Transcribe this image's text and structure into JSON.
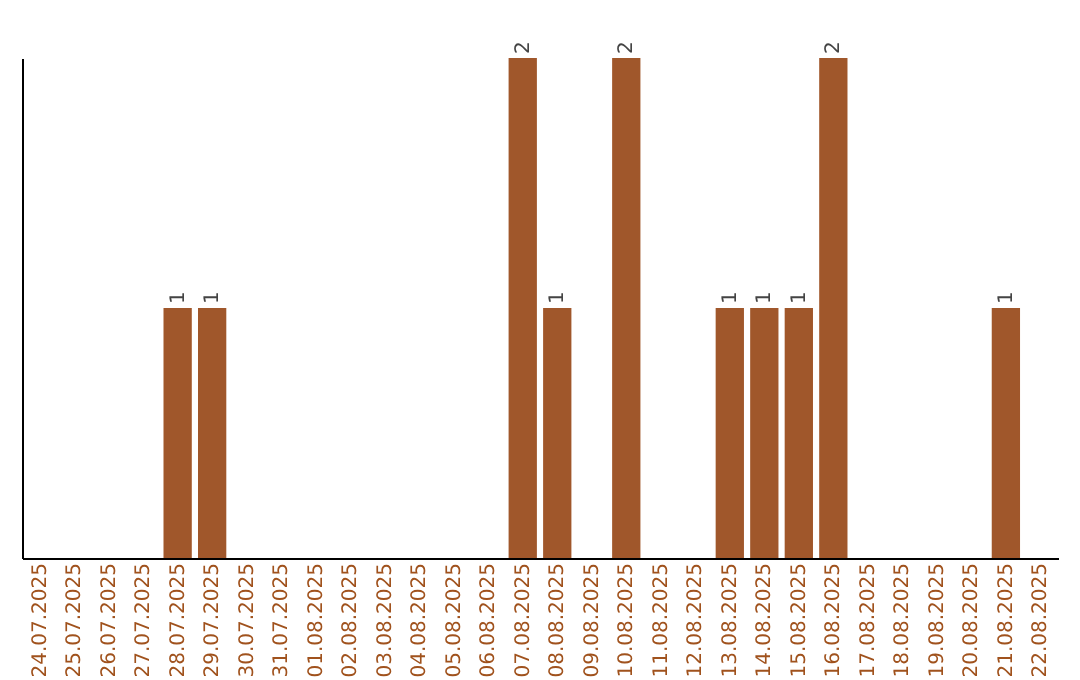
{
  "chart_data": {
    "type": "bar",
    "categories": [
      "24.07.2025",
      "25.07.2025",
      "26.07.2025",
      "27.07.2025",
      "28.07.2025",
      "29.07.2025",
      "30.07.2025",
      "31.07.2025",
      "01.08.2025",
      "02.08.2025",
      "03.08.2025",
      "04.08.2025",
      "05.08.2025",
      "06.08.2025",
      "07.08.2025",
      "08.08.2025",
      "09.08.2025",
      "10.08.2025",
      "11.08.2025",
      "12.08.2025",
      "13.08.2025",
      "14.08.2025",
      "15.08.2025",
      "16.08.2025",
      "17.08.2025",
      "18.08.2025",
      "19.08.2025",
      "20.08.2025",
      "21.08.2025",
      "22.08.2025"
    ],
    "values": [
      0,
      0,
      0,
      0,
      1,
      1,
      0,
      0,
      0,
      0,
      0,
      0,
      0,
      0,
      2,
      1,
      0,
      2,
      0,
      0,
      1,
      1,
      1,
      2,
      0,
      0,
      0,
      0,
      1,
      0
    ],
    "value_labels": [
      null,
      null,
      null,
      null,
      "1",
      "1",
      null,
      null,
      null,
      null,
      null,
      null,
      null,
      null,
      "2",
      "1",
      null,
      "2",
      null,
      null,
      "1",
      "1",
      "1",
      "2",
      null,
      null,
      null,
      null,
      "1",
      null
    ],
    "color": "#a0572b"
  }
}
